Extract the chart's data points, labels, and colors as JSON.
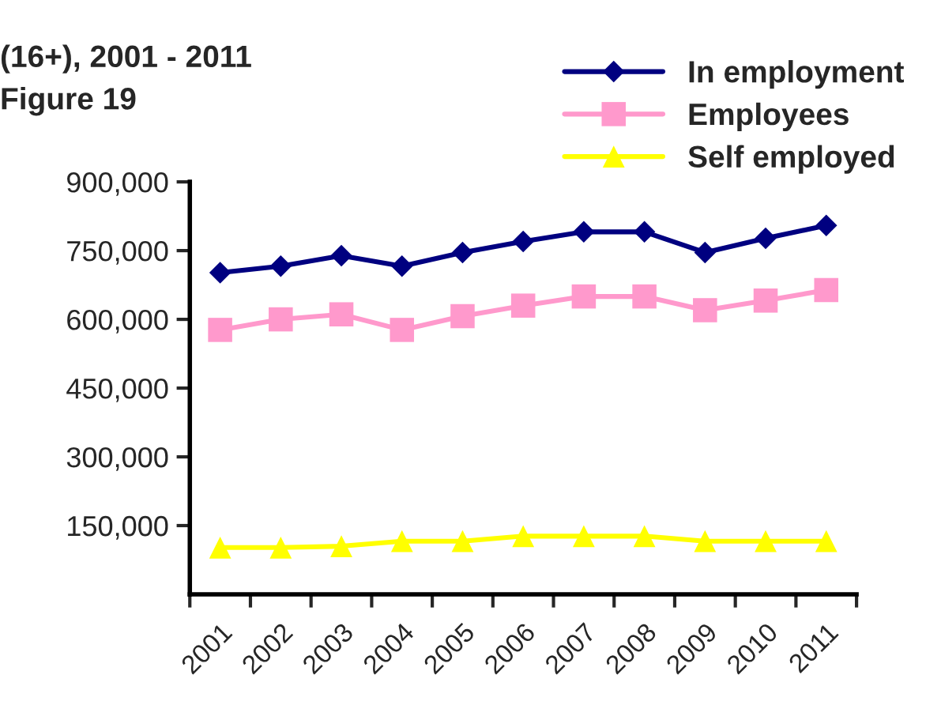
{
  "chart_data": {
    "type": "line",
    "title": "(16+), 2001 - 2011",
    "subtitle": "Figure 19",
    "categories": [
      "2001",
      "2002",
      "2003",
      "2004",
      "2005",
      "2006",
      "2007",
      "2008",
      "2009",
      "2010",
      "2011"
    ],
    "series": [
      {
        "name": "In employment",
        "color": "#000080",
        "marker": "diamond",
        "values": [
          702000,
          716000,
          739000,
          716000,
          746000,
          770000,
          791000,
          791000,
          746000,
          777000,
          805000
        ]
      },
      {
        "name": "Employees",
        "color": "#ff99cc",
        "marker": "square",
        "values": [
          577000,
          600000,
          611000,
          577000,
          607000,
          630000,
          650000,
          650000,
          620000,
          641000,
          664000
        ]
      },
      {
        "name": "Self employed",
        "color": "#ffff00",
        "marker": "triangle",
        "values": [
          102000,
          102000,
          105000,
          116000,
          116000,
          127000,
          127000,
          127000,
          116000,
          116000,
          116000
        ]
      }
    ],
    "ylim": [
      0,
      900000
    ],
    "yticks": [
      {
        "value": 150000,
        "label": "150,000"
      },
      {
        "value": 300000,
        "label": "300,000"
      },
      {
        "value": 450000,
        "label": "450,000"
      },
      {
        "value": 600000,
        "label": "600,000"
      },
      {
        "value": 750000,
        "label": "750,000"
      },
      {
        "value": 900000,
        "label": "900,000"
      }
    ],
    "grid": false,
    "legend": "top right",
    "line_style": "solid"
  }
}
